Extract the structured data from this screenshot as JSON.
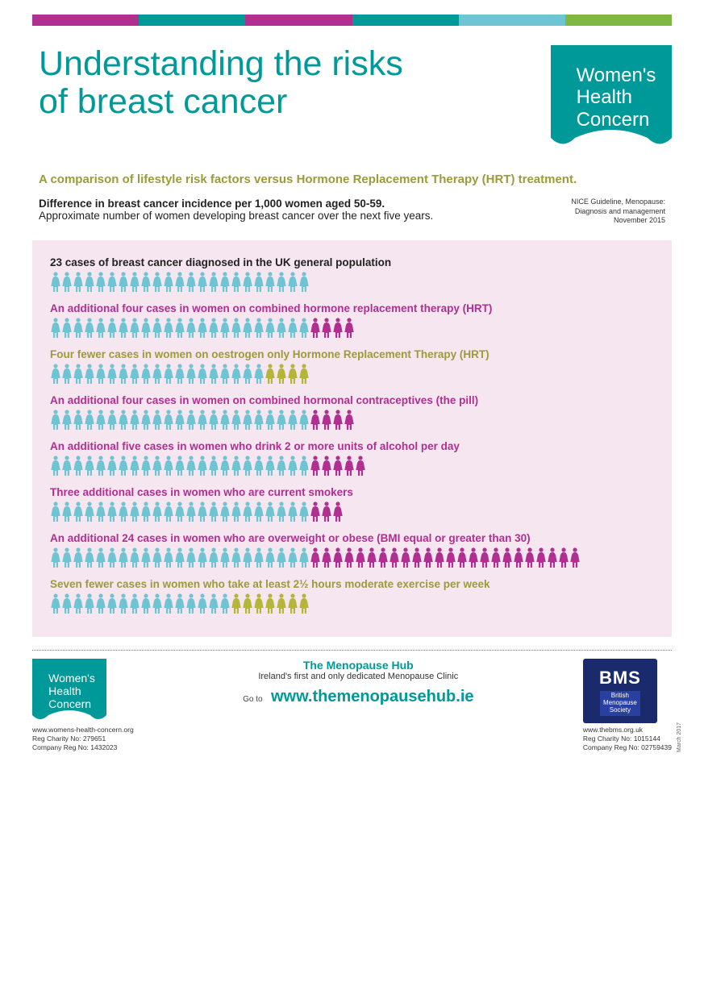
{
  "colors": {
    "teal": "#009999",
    "magenta": "#b02f91",
    "olive": "#b5b53a",
    "pink_bg": "#f6e6ef",
    "base_icon": "#6fc4d4",
    "add_icon": "#b02f91",
    "less_icon": "#b5b53a",
    "navy": "#1a2a6c",
    "stripes": [
      "#b02f91",
      "#009999",
      "#b02f91",
      "#009999",
      "#6fc4d4",
      "#7fb745"
    ]
  },
  "title_line1": "Understanding the risks",
  "title_line2": "of breast cancer",
  "whc_logo_l1": "Women's",
  "whc_logo_l2": "Health",
  "whc_logo_l3": "Concern",
  "subhead": "A comparison of lifestyle risk factors versus Hormone Replacement Therapy (HRT) treatment.",
  "desc_bold": "Difference in breast cancer incidence per 1,000 women aged 50-59.",
  "desc_plain": "Approximate number of women developing breast cancer over the next five years.",
  "source_l1": "NICE Guideline, Menopause:",
  "source_l2": "Diagnosis and management",
  "source_l3": "November 2015",
  "rows": [
    {
      "label": "23 cases of breast cancer diagnosed in the UK general population",
      "label_color": "#222222",
      "base": 23,
      "delta": 0,
      "mode": "none"
    },
    {
      "label": "An additional four cases in women on combined hormone replacement therapy (HRT)",
      "label_color": "#b02f91",
      "base": 23,
      "delta": 4,
      "mode": "add"
    },
    {
      "label": "Four fewer  cases in women on oestrogen only Hormone Replacement Therapy (HRT)",
      "label_color": "#9b9b3a",
      "base": 19,
      "delta": 4,
      "mode": "less"
    },
    {
      "label": "An additional four cases in women on combined hormonal contraceptives (the pill)",
      "label_color": "#b02f91",
      "base": 23,
      "delta": 4,
      "mode": "add"
    },
    {
      "label": "An additional five cases in women who drink 2 or more units of alcohol per day",
      "label_color": "#b02f91",
      "base": 23,
      "delta": 5,
      "mode": "add"
    },
    {
      "label": "Three additional cases in women who are current smokers",
      "label_color": "#b02f91",
      "base": 23,
      "delta": 3,
      "mode": "add"
    },
    {
      "label": "An additional 24 cases in women who are overweight or obese (BMI equal or greater than 30)",
      "label_color": "#b02f91",
      "base": 23,
      "delta": 24,
      "mode": "add"
    },
    {
      "label": "Seven fewer cases in women who take at least 2½ hours moderate exercise per week",
      "label_color": "#9b9b3a",
      "base": 16,
      "delta": 7,
      "mode": "less"
    }
  ],
  "footer": {
    "hub_name": "The Menopause Hub",
    "hub_tag": "Ireland's first and only dedicated Menopause Clinic",
    "goto": "Go to",
    "hub_url": "www.themenopausehub.ie",
    "whc_url": "www.womens-health-concern.org",
    "whc_reg1": "Reg Charity No: 279651",
    "whc_reg2": "Company Reg No: 1432023",
    "bms_big": "BMS",
    "bms_l1": "British",
    "bms_l2": "Menopause",
    "bms_l3": "Society",
    "bms_url": "www.thebms.org.uk",
    "bms_reg1": "Reg Charity No: 1015144",
    "bms_reg2": "Company Reg No: 02759439",
    "date": "March 2017"
  }
}
